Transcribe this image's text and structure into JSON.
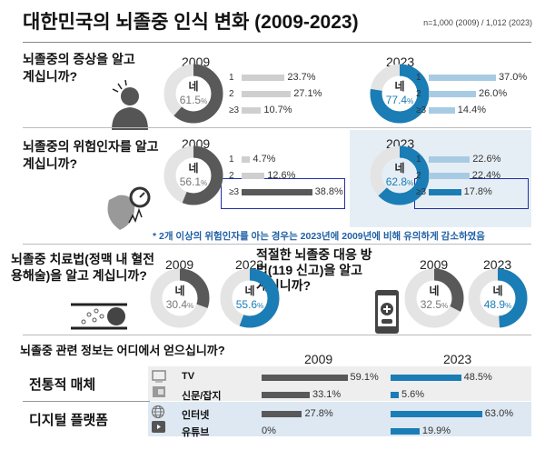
{
  "title": "대한민국의 뇌졸중 인식 변화 (2009-2023)",
  "sample": "n=1,000 (2009) / 1,012 (2023)",
  "colors": {
    "dark": "#595959",
    "light_ring": "#e4e4e4",
    "blue": "#1a7db5",
    "light_blue": "#a8cbe4",
    "light_gray_bar": "#cfcfcf",
    "highlight_bg": "#e6eef5",
    "row_gray": "#eeeeee",
    "row_blue": "#dde8f2"
  },
  "yes_label": "네",
  "years": [
    "2009",
    "2023"
  ],
  "chart_data": [
    {
      "type": "donut+bar",
      "question": "뇌졸중의 증상을 알고 계십니까?",
      "icon": "person-headache-icon",
      "donuts": [
        {
          "year": "2009",
          "value": 61.5
        },
        {
          "year": "2023",
          "value": 77.4
        }
      ],
      "bars": {
        "categories": [
          "1",
          "2",
          "≥3"
        ],
        "series": [
          {
            "year": "2009",
            "values": [
              23.7,
              27.1,
              10.7
            ]
          },
          {
            "year": "2023",
            "values": [
              37.0,
              26.0,
              14.4
            ]
          }
        ]
      }
    },
    {
      "type": "donut+bar",
      "question": "뇌졸중의 위험인자를 알고 계십니까?",
      "icon": "heart-blood-pressure-icon",
      "donuts": [
        {
          "year": "2009",
          "value": 56.1
        },
        {
          "year": "2023",
          "value": 62.8
        }
      ],
      "bars": {
        "categories": [
          "1",
          "2",
          "≥3"
        ],
        "series": [
          {
            "year": "2009",
            "values": [
              4.7,
              12.6,
              38.8
            ]
          },
          {
            "year": "2023",
            "values": [
              22.6,
              22.4,
              17.8
            ]
          }
        ]
      },
      "note": "* 2개 이상의 위험인자를 아는 경우는 2023년에 2009년에 비해 유의하게 감소하였음"
    },
    {
      "type": "donut",
      "question": "뇌졸중 치료법(정맥 내 혈전용해술)을 알고 계십니까?",
      "icon": "blood-vessel-clot-icon",
      "donuts": [
        {
          "year": "2009",
          "value": 30.4
        },
        {
          "year": "2023",
          "value": 55.6
        }
      ]
    },
    {
      "type": "donut",
      "question": "적절한 뇌졸중 대응 방법(119 신고)을 알고 계십니까?",
      "icon": "phone-call-icon",
      "donuts": [
        {
          "year": "2009",
          "value": 32.5
        },
        {
          "year": "2023",
          "value": 48.9
        }
      ]
    },
    {
      "type": "bar",
      "question": "뇌졸중 관련 정보는 어디에서 얻으십니까?",
      "groups": [
        {
          "name": "전통적 매체",
          "sources": [
            {
              "name": "TV",
              "icon": "tv-icon",
              "v2009": 59.1,
              "v2023": 48.5
            },
            {
              "name": "신문/잡지",
              "icon": "newspaper-icon",
              "v2009": 33.1,
              "v2023": 5.6
            }
          ]
        },
        {
          "name": "디지털 플랫폼",
          "sources": [
            {
              "name": "인터넷",
              "icon": "globe-icon",
              "v2009": 27.8,
              "v2023": 63.0
            },
            {
              "name": "유튜브",
              "icon": "youtube-icon",
              "v2009": 0,
              "v2023": 19.9
            }
          ]
        }
      ]
    }
  ]
}
